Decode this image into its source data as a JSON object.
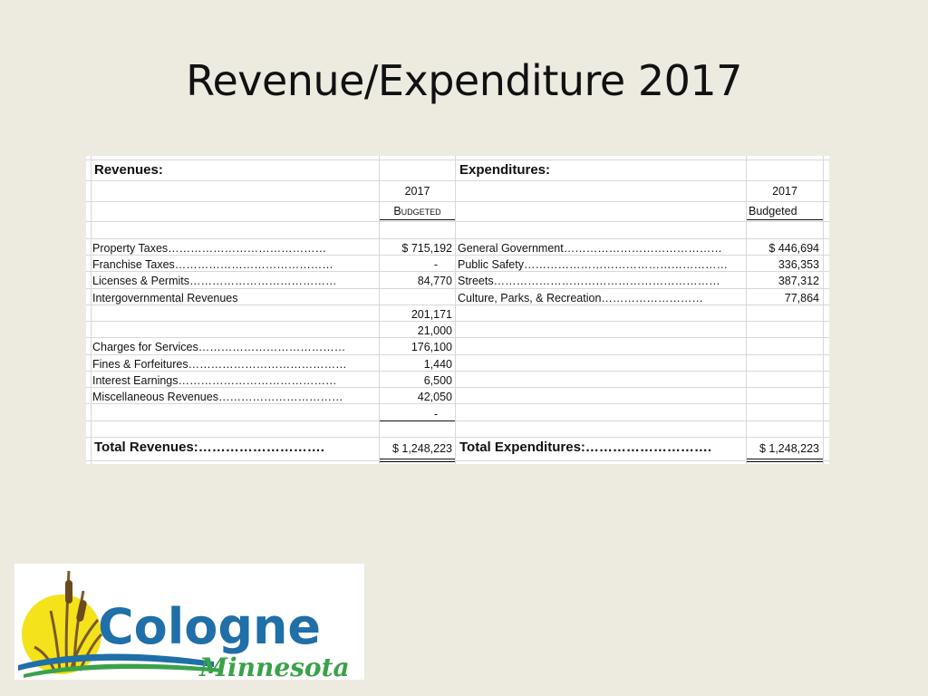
{
  "slide": {
    "title": "Revenue/Expenditure 2017"
  },
  "revenues": {
    "header": "Revenues:",
    "year": "2017",
    "col_label": "Budgeted",
    "rows": [
      {
        "label": "Property Taxes……………………………………",
        "value": "$  715,192"
      },
      {
        "label": "Franchise Taxes……………………………………",
        "value": "-"
      },
      {
        "label": "Licenses & Permits…………………………………",
        "value": "84,770"
      },
      {
        "label": "Intergovernmental Revenues",
        "value": ""
      },
      {
        "label": "",
        "value": "201,171"
      },
      {
        "label": "",
        "value": "21,000"
      },
      {
        "label": "Charges for Services…………………………………",
        "value": "176,100"
      },
      {
        "label": "Fines & Forfeitures……………………………………",
        "value": "1,440"
      },
      {
        "label": "Interest Earnings……………………………………",
        "value": "6,500"
      },
      {
        "label": "Miscellaneous Revenues……………………………",
        "value": "42,050"
      },
      {
        "label": "",
        "value": "-"
      }
    ],
    "total_label": "Total Revenues:……………………….",
    "total_value": "$ 1,248,223"
  },
  "expenditures": {
    "header": "Expenditures:",
    "year": "2017",
    "col_label": "Budgeted",
    "rows": [
      {
        "label": "General Government……………………………………",
        "value": "$  446,694"
      },
      {
        "label": "Public Safety………………………………………………",
        "value": "336,353"
      },
      {
        "label": "Streets……………………………………………………",
        "value": "387,312"
      },
      {
        "label": "Culture, Parks, & Recreation………………………",
        "value": "77,864"
      }
    ],
    "total_label": "Total Expenditures:……………………….",
    "total_value": "$ 1,248,223"
  },
  "logo": {
    "name": "Cologne",
    "subtitle": "Minnesota"
  },
  "colors": {
    "background": "#edebe0",
    "logo_blue": "#1f6fa8",
    "logo_green": "#3aa24a",
    "logo_sun": "#f4e21b"
  }
}
